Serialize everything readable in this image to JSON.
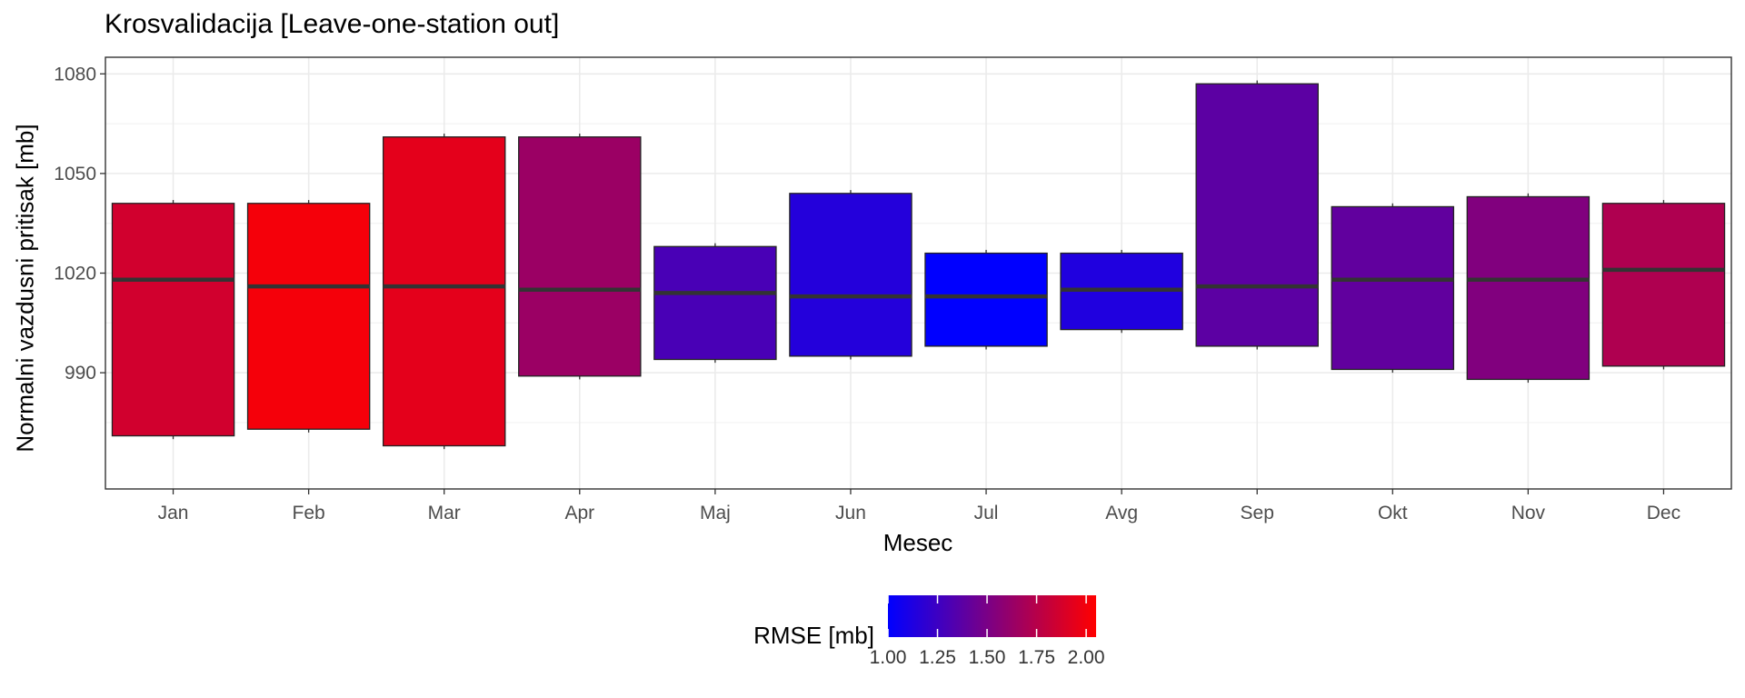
{
  "chart_data": {
    "type": "boxplot",
    "title": "Krosvalidacija [Leave-one-station out]",
    "xlabel": "Mesec",
    "ylabel": "Normalni vazdusni pritisak [mb]",
    "ylim": [
      955,
      1085
    ],
    "yticks": [
      990,
      1020,
      1050,
      1080
    ],
    "grid": true,
    "legend": {
      "title": "RMSE [mb]",
      "placement": "bottom",
      "range": [
        1.0,
        2.05
      ],
      "ticks": [
        "1.00",
        "1.25",
        "1.50",
        "1.75",
        "2.00"
      ],
      "colors": [
        "#0000ff",
        "#ff0000"
      ]
    },
    "categories": [
      "Jan",
      "Feb",
      "Mar",
      "Apr",
      "Maj",
      "Jun",
      "Jul",
      "Avg",
      "Sep",
      "Okt",
      "Nov",
      "Dec"
    ],
    "boxes": [
      {
        "q1": 971,
        "median": 1018,
        "q3": 1041,
        "min": 970,
        "max": 1042,
        "rmse": 1.86
      },
      {
        "q1": 973,
        "median": 1016,
        "q3": 1041,
        "min": 972,
        "max": 1042,
        "rmse": 2.01
      },
      {
        "q1": 968,
        "median": 1016,
        "q3": 1061,
        "min": 967,
        "max": 1062,
        "rmse": 1.94
      },
      {
        "q1": 989,
        "median": 1015,
        "q3": 1061,
        "min": 988,
        "max": 1062,
        "rmse": 1.64
      },
      {
        "q1": 994,
        "median": 1014,
        "q3": 1028,
        "min": 993,
        "max": 1029,
        "rmse": 1.3
      },
      {
        "q1": 995,
        "median": 1013,
        "q3": 1044,
        "min": 994,
        "max": 1045,
        "rmse": 1.15
      },
      {
        "q1": 998,
        "median": 1013,
        "q3": 1026,
        "min": 997,
        "max": 1027,
        "rmse": 1.0
      },
      {
        "q1": 1003,
        "median": 1015,
        "q3": 1026,
        "min": 1002,
        "max": 1027,
        "rmse": 1.13
      },
      {
        "q1": 998,
        "median": 1016,
        "q3": 1077,
        "min": 997,
        "max": 1078,
        "rmse": 1.38
      },
      {
        "q1": 991,
        "median": 1018,
        "q3": 1040,
        "min": 990,
        "max": 1041,
        "rmse": 1.4
      },
      {
        "q1": 988,
        "median": 1018,
        "q3": 1043,
        "min": 987,
        "max": 1044,
        "rmse": 1.53
      },
      {
        "q1": 992,
        "median": 1021,
        "q3": 1041,
        "min": 991,
        "max": 1042,
        "rmse": 1.72
      }
    ]
  }
}
